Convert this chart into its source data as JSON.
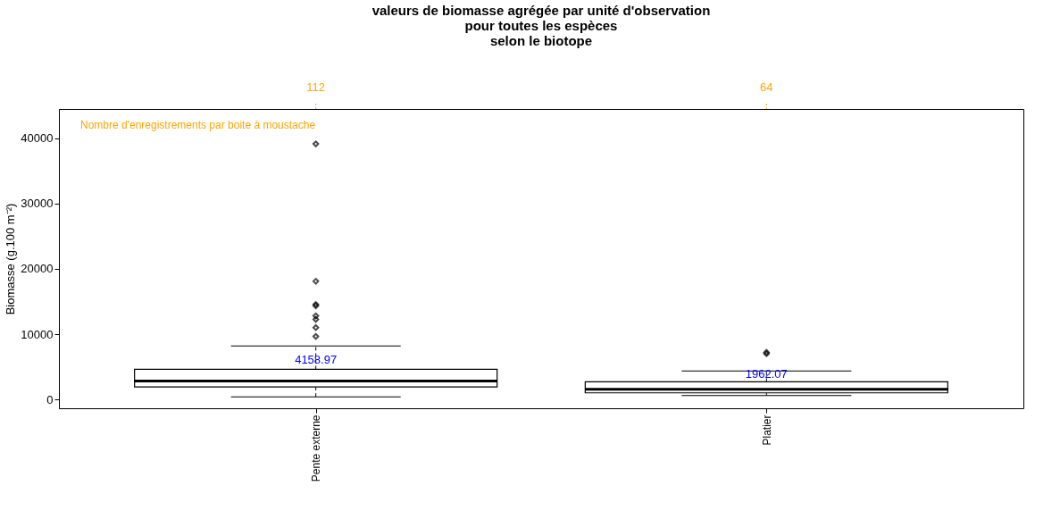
{
  "chart_data": {
    "type": "box",
    "title": [
      "valeurs de biomasse agrégée par unité d'observation",
      "pour toutes les espèces",
      "selon le biotope"
    ],
    "ylabel": "Biomasse (g.100 m⁻²)",
    "categories": [
      "Pente externe",
      "Platier"
    ],
    "boxes": [
      {
        "low": 400,
        "q1": 1900,
        "median": 2800,
        "q3": 4600,
        "high": 8200,
        "outliers": [
          9650,
          11000,
          12250,
          12800,
          14350,
          14550,
          18100,
          39150
        ]
      },
      {
        "low": 600,
        "q1": 1000,
        "median": 1550,
        "q3": 2700,
        "high": 4350,
        "outliers": [
          7000,
          7200
        ]
      }
    ],
    "ylim": [
      -1360,
      44500
    ],
    "yticks": [
      0,
      10000,
      20000,
      30000,
      40000
    ],
    "annotations": [
      {
        "text": "4158.97",
        "x": "Pente externe",
        "y": 4158.97
      },
      {
        "text": "1962.07",
        "x": "Platier",
        "y": 1962.07
      },
      {
        "text": "112",
        "x": "Pente externe"
      },
      {
        "text": "64",
        "x": "Platier"
      },
      "Nombre d'enregistrements par boite à moustache"
    ]
  }
}
